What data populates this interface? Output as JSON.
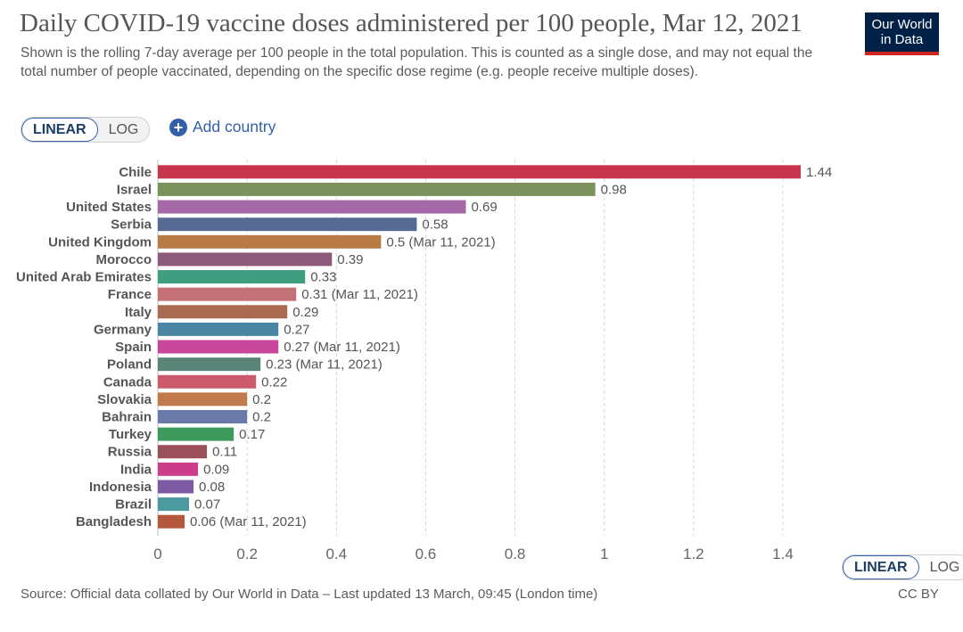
{
  "header": {
    "title": "Daily COVID-19 vaccine doses administered per 100 people, Mar 12, 2021",
    "subtitle": "Shown is the rolling 7-day average per 100 people in the total population. This is counted as a single dose, and may not equal the total number of people vaccinated, depending on the specific dose regime (e.g. people receive multiple doses)."
  },
  "logo": {
    "line1": "Our World",
    "line2": "in Data",
    "bg_color": "#002147",
    "accent_color": "#ce261e"
  },
  "controls": {
    "scale_linear": "LINEAR",
    "scale_log": "LOG",
    "active_scale": "LINEAR",
    "add_country_label": "Add country",
    "add_icon": "plus-circle-icon"
  },
  "chart_data": {
    "type": "bar",
    "orientation": "horizontal",
    "categories": [
      "Chile",
      "Israel",
      "United States",
      "Serbia",
      "United Kingdom",
      "Morocco",
      "United Arab Emirates",
      "France",
      "Italy",
      "Germany",
      "Spain",
      "Poland",
      "Canada",
      "Slovakia",
      "Bahrain",
      "Turkey",
      "Russia",
      "India",
      "Indonesia",
      "Brazil",
      "Bangladesh"
    ],
    "values": [
      1.44,
      0.98,
      0.69,
      0.58,
      0.5,
      0.39,
      0.33,
      0.31,
      0.29,
      0.27,
      0.27,
      0.23,
      0.22,
      0.2,
      0.2,
      0.17,
      0.11,
      0.09,
      0.08,
      0.07,
      0.06
    ],
    "value_labels": [
      "1.44",
      "0.98",
      "0.69",
      "0.58",
      "0.5 (Mar 11, 2021)",
      "0.39",
      "0.33",
      "0.31 (Mar 11, 2021)",
      "0.29",
      "0.27",
      "0.27 (Mar 11, 2021)",
      "0.23 (Mar 11, 2021)",
      "0.22",
      "0.2",
      "0.2",
      "0.17",
      "0.11",
      "0.09",
      "0.08",
      "0.07",
      "0.06 (Mar 11, 2021)"
    ],
    "colors": [
      "#c8364e",
      "#7b925d",
      "#a569a8",
      "#566b93",
      "#b77b43",
      "#8e5a7b",
      "#3f9e80",
      "#c57077",
      "#a96a4f",
      "#4a86a3",
      "#c8479a",
      "#5a8478",
      "#cc5a6b",
      "#c07a4c",
      "#6a7aa8",
      "#3d9a5c",
      "#9a4f5a",
      "#cc3d8b",
      "#7d5aa3",
      "#4a9aa0",
      "#b5573a"
    ],
    "x_ticks": [
      "0",
      "0.2",
      "0.4",
      "0.6",
      "0.8",
      "1",
      "1.2",
      "1.4"
    ],
    "xlim": [
      0,
      1.44
    ],
    "grid": true
  },
  "footer": {
    "source": "Source: Official data collated by Our World in Data – Last updated 13 March, 09:45 (London time)",
    "license": "CC BY"
  }
}
